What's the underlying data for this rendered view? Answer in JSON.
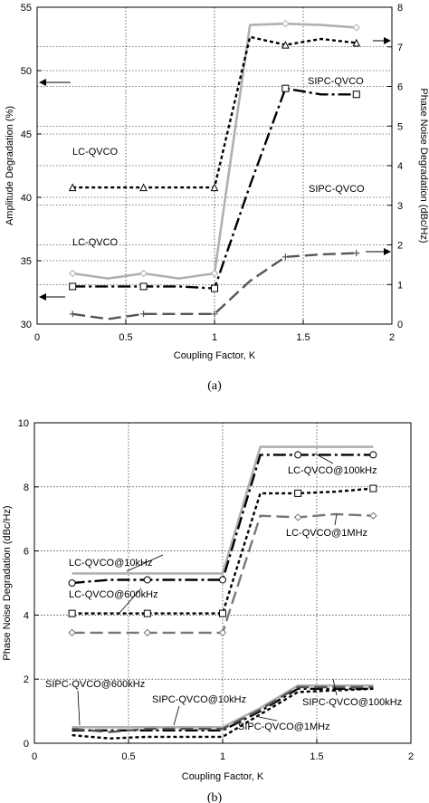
{
  "chart_data": [
    {
      "panel": "a",
      "type": "line",
      "caption": "(a)",
      "xlabel": "Coupling Factor, K",
      "ylabel_left": "Amplitude Degradation (%)",
      "ylabel_right": "Phase Noise Degradation (dBc/Hz)",
      "xlim": [
        0,
        2
      ],
      "ylim_left": [
        30,
        55
      ],
      "ylim_right": [
        0,
        8
      ],
      "x_ticks": [
        "0",
        "0.5",
        "1",
        "1.5",
        "2"
      ],
      "y_left_ticks": [
        "30",
        "35",
        "40",
        "45",
        "50",
        "55"
      ],
      "y_right_ticks": [
        "0",
        "1",
        "2",
        "3",
        "4",
        "5",
        "6",
        "7",
        "8"
      ],
      "grid": true,
      "annotations": [
        "LC-QVCO",
        "LC-QVCO",
        "SIPC-QVCO",
        "SIPC-QVCO"
      ],
      "series": [
        {
          "axis": "left",
          "color": "#b0b0b0",
          "style": "solid",
          "marker": "diamond",
          "x": [
            0.2,
            0.4,
            0.6,
            0.8,
            1.0,
            1.2,
            1.4,
            1.6,
            1.8
          ],
          "y": [
            34.0,
            33.6,
            34.0,
            33.6,
            34.0,
            53.6,
            53.7,
            53.6,
            53.4
          ]
        },
        {
          "axis": "left",
          "color": "#555555",
          "style": "dashed",
          "marker": "plus",
          "x": [
            0.2,
            0.4,
            0.6,
            0.8,
            1.0,
            1.2,
            1.4,
            1.6,
            1.8
          ],
          "y": [
            30.8,
            30.4,
            30.8,
            30.8,
            30.8,
            33.4,
            35.3,
            35.5,
            35.6
          ]
        },
        {
          "axis": "right",
          "color": "#000000",
          "style": "dotted",
          "marker": "triangle",
          "x": [
            0.2,
            0.4,
            0.6,
            0.8,
            1.0,
            1.2,
            1.4,
            1.6,
            1.8
          ],
          "y": [
            3.45,
            3.45,
            3.45,
            3.45,
            3.45,
            7.25,
            7.05,
            7.2,
            7.1
          ]
        },
        {
          "axis": "right",
          "color": "#000000",
          "style": "dash-dot",
          "marker": "square",
          "x": [
            0.2,
            0.4,
            0.6,
            0.8,
            1.0,
            1.2,
            1.4,
            1.6,
            1.8
          ],
          "y": [
            0.95,
            0.95,
            0.95,
            0.95,
            0.9,
            3.5,
            5.95,
            5.8,
            5.8
          ]
        }
      ]
    },
    {
      "panel": "b",
      "type": "line",
      "caption": "(b)",
      "xlabel": "Coupling Factor, K",
      "ylabel": "Phase Noise Degradation (dBc/Hz)",
      "xlim": [
        0,
        2
      ],
      "ylim": [
        0,
        10
      ],
      "x_ticks": [
        "0",
        "0.5",
        "1",
        "1.5",
        "2"
      ],
      "y_ticks": [
        "0",
        "2",
        "4",
        "6",
        "8",
        "10"
      ],
      "grid": true,
      "series": [
        {
          "name": "LC-QVCO@10kHz",
          "color": "#b0b0b0",
          "style": "solid",
          "marker": "none",
          "x": [
            0.2,
            0.4,
            0.6,
            0.8,
            1.0,
            1.2,
            1.4,
            1.6,
            1.8
          ],
          "y": [
            5.3,
            5.3,
            5.3,
            5.3,
            5.3,
            9.25,
            9.25,
            9.25,
            9.25
          ]
        },
        {
          "name": "LC-QVCO@100kHz",
          "color": "#000000",
          "style": "dash-dot",
          "marker": "circle",
          "x": [
            0.2,
            0.4,
            0.6,
            0.8,
            1.0,
            1.2,
            1.4,
            1.6,
            1.8
          ],
          "y": [
            5.0,
            5.1,
            5.1,
            5.1,
            5.1,
            9.0,
            9.0,
            9.0,
            9.0
          ]
        },
        {
          "name": "LC-QVCO@600kHz",
          "color": "#000000",
          "style": "dotted",
          "marker": "square",
          "x": [
            0.2,
            0.4,
            0.6,
            0.8,
            1.0,
            1.2,
            1.4,
            1.6,
            1.8
          ],
          "y": [
            4.05,
            4.05,
            4.05,
            4.05,
            4.05,
            7.8,
            7.8,
            7.85,
            7.95
          ]
        },
        {
          "name": "LC-QVCO@1MHz",
          "color": "#777777",
          "style": "dashed",
          "marker": "diamond",
          "x": [
            0.2,
            0.4,
            0.6,
            0.8,
            1.0,
            1.2,
            1.4,
            1.6,
            1.8
          ],
          "y": [
            3.45,
            3.45,
            3.45,
            3.45,
            3.45,
            7.1,
            7.05,
            7.15,
            7.1
          ]
        },
        {
          "name": "SIPC-QVCO@10kHz",
          "color": "#b0b0b0",
          "style": "solid",
          "marker": "none",
          "x": [
            0.2,
            0.4,
            0.6,
            0.8,
            1.0,
            1.2,
            1.4,
            1.6,
            1.8
          ],
          "y": [
            0.5,
            0.5,
            0.5,
            0.5,
            0.5,
            1.1,
            1.8,
            1.8,
            1.8
          ]
        },
        {
          "name": "SIPC-QVCO@100kHz",
          "color": "#000000",
          "style": "dash-dot",
          "marker": "none",
          "x": [
            0.2,
            0.4,
            0.6,
            0.8,
            1.0,
            1.2,
            1.4,
            1.6,
            1.8
          ],
          "y": [
            0.4,
            0.4,
            0.4,
            0.4,
            0.4,
            1.0,
            1.7,
            1.7,
            1.7
          ]
        },
        {
          "name": "SIPC-QVCO@600kHz",
          "color": "#555555",
          "style": "dashed",
          "marker": "none",
          "x": [
            0.2,
            0.4,
            0.6,
            0.8,
            1.0,
            1.2,
            1.4,
            1.6,
            1.8
          ],
          "y": [
            0.45,
            0.35,
            0.45,
            0.45,
            0.45,
            1.05,
            1.75,
            1.75,
            1.75
          ]
        },
        {
          "name": "SIPC-QVCO@1MHz",
          "color": "#000000",
          "style": "dotted",
          "marker": "none",
          "x": [
            0.2,
            0.4,
            0.6,
            0.8,
            1.0,
            1.2,
            1.4,
            1.6,
            1.8
          ],
          "y": [
            0.25,
            0.15,
            0.2,
            0.2,
            0.2,
            0.9,
            1.6,
            1.65,
            1.7
          ]
        }
      ]
    }
  ]
}
